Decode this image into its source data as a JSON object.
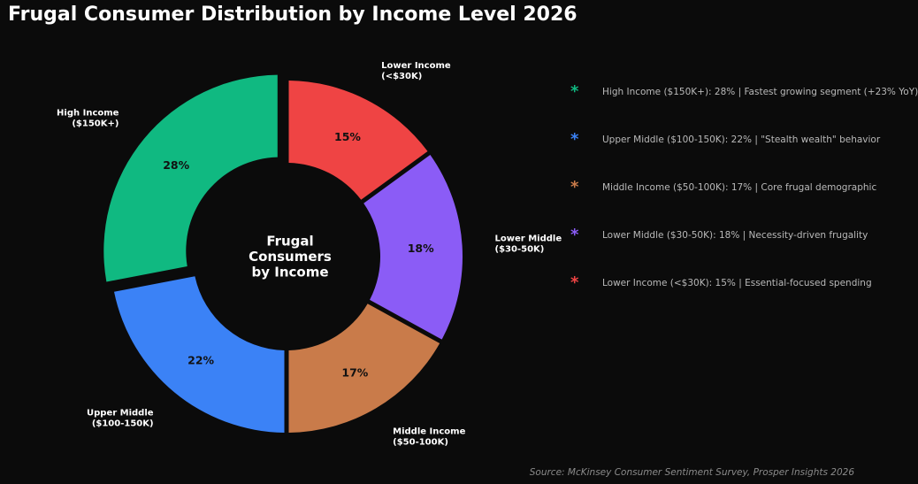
{
  "chart_data": {
    "type": "pie",
    "title": "Frugal Consumer Distribution by Income Level 2026",
    "center_label": [
      "Frugal",
      "Consumers",
      "by Income"
    ],
    "slices": [
      {
        "label": [
          "Lower Income",
          "(<$30K)"
        ],
        "value": 15,
        "value_label": "15%",
        "color": "#ef4444"
      },
      {
        "label": [
          "Lower Middle",
          "($30-50K)"
        ],
        "value": 18,
        "value_label": "18%",
        "color": "#8b5cf6"
      },
      {
        "label": [
          "Middle Income",
          "($50-100K)"
        ],
        "value": 17,
        "value_label": "17%",
        "color": "#c97b4a"
      },
      {
        "label": [
          "Upper Middle",
          "($100-150K)"
        ],
        "value": 22,
        "value_label": "22%",
        "color": "#3b82f6"
      },
      {
        "label": [
          "High Income",
          "($150K+)"
        ],
        "value": 28,
        "value_label": "28%",
        "color": "#10b981"
      }
    ]
  },
  "legend": {
    "marker": "*",
    "items": [
      {
        "text": "High Income ($150K+): 28% | Fastest growing segment (+23% YoY)",
        "color": "#10b981"
      },
      {
        "text": "Upper Middle ($100-150K): 22% | \"Stealth wealth\" behavior",
        "color": "#3b82f6"
      },
      {
        "text": "Middle Income ($50-100K): 17% | Core frugal demographic",
        "color": "#c97b4a"
      },
      {
        "text": "Lower Middle ($30-50K): 18% | Necessity-driven frugality",
        "color": "#8b5cf6"
      },
      {
        "text": "Lower Income (<$30K): 15% | Essential-focused spending",
        "color": "#ef4444"
      }
    ]
  },
  "source": "Source: McKinsey Consumer Sentiment Survey, Prosper Insights 2026"
}
